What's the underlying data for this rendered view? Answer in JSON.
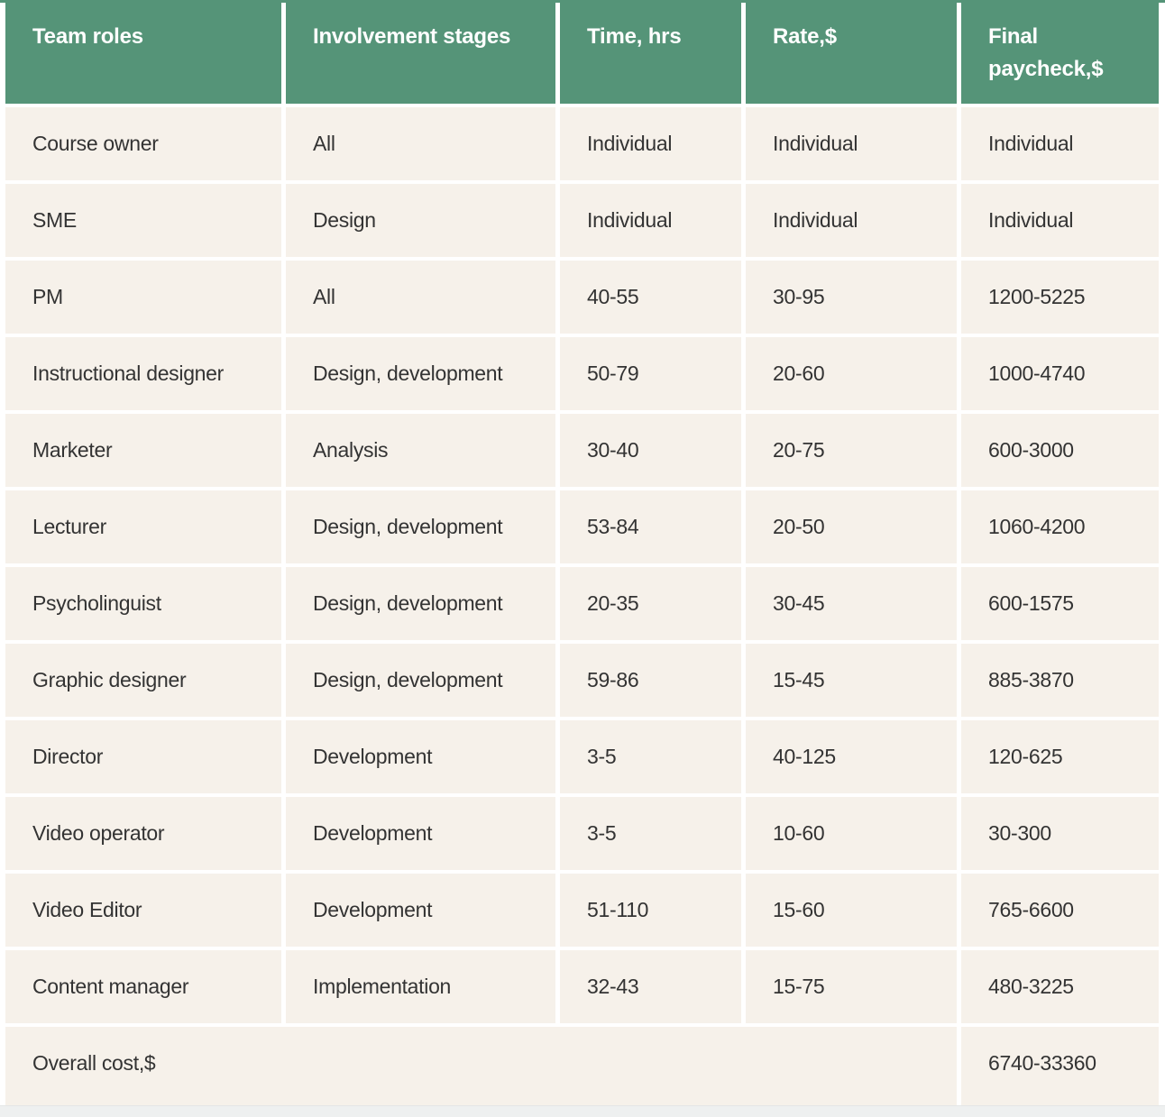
{
  "table": {
    "columns": [
      "Team roles",
      "Involvement stages",
      "Time, hrs",
      "Rate,$",
      "Final paycheck,$"
    ],
    "rows": [
      {
        "role": "Course owner",
        "stages": "All",
        "time": "Individual",
        "rate": "Individual",
        "paycheck": "Individual"
      },
      {
        "role": "SME",
        "stages": "Design",
        "time": "Individual",
        "rate": "Individual",
        "paycheck": "Individual"
      },
      {
        "role": "PM",
        "stages": "All",
        "time": "40-55",
        "rate": "30-95",
        "paycheck": "1200-5225"
      },
      {
        "role": "Instructional designer",
        "stages": "Design, development",
        "time": "50-79",
        "rate": "20-60",
        "paycheck": "1000-4740"
      },
      {
        "role": "Marketer",
        "stages": "Analysis",
        "time": "30-40",
        "rate": "20-75",
        "paycheck": "600-3000"
      },
      {
        "role": "Lecturer",
        "stages": "Design, development",
        "time": "53-84",
        "rate": "20-50",
        "paycheck": "1060-4200"
      },
      {
        "role": "Psycholinguist",
        "stages": "Design, development",
        "time": "20-35",
        "rate": "30-45",
        "paycheck": "600-1575"
      },
      {
        "role": "Graphic designer",
        "stages": "Design, development",
        "time": "59-86",
        "rate": "15-45",
        "paycheck": "885-3870"
      },
      {
        "role": "Director",
        "stages": "Development",
        "time": "3-5",
        "rate": "40-125",
        "paycheck": "120-625"
      },
      {
        "role": "Video operator",
        "stages": "Development",
        "time": "3-5",
        "rate": "10-60",
        "paycheck": "30-300"
      },
      {
        "role": "Video Editor",
        "stages": "Development",
        "time": "51-110",
        "rate": "15-60",
        "paycheck": "765-6600"
      },
      {
        "role": "Content manager",
        "stages": "Implementation",
        "time": "32-43",
        "rate": "15-75",
        "paycheck": "480-3225"
      }
    ],
    "footer": {
      "label": "Overall cost,$",
      "total": "6740-33360"
    }
  },
  "colors": {
    "header_bg": "#559478",
    "row_bg": "#f6f1ea",
    "gap": "#ffffff",
    "body_text": "#333333",
    "header_text": "#ffffff",
    "bottom_band": "#eef0f0"
  }
}
